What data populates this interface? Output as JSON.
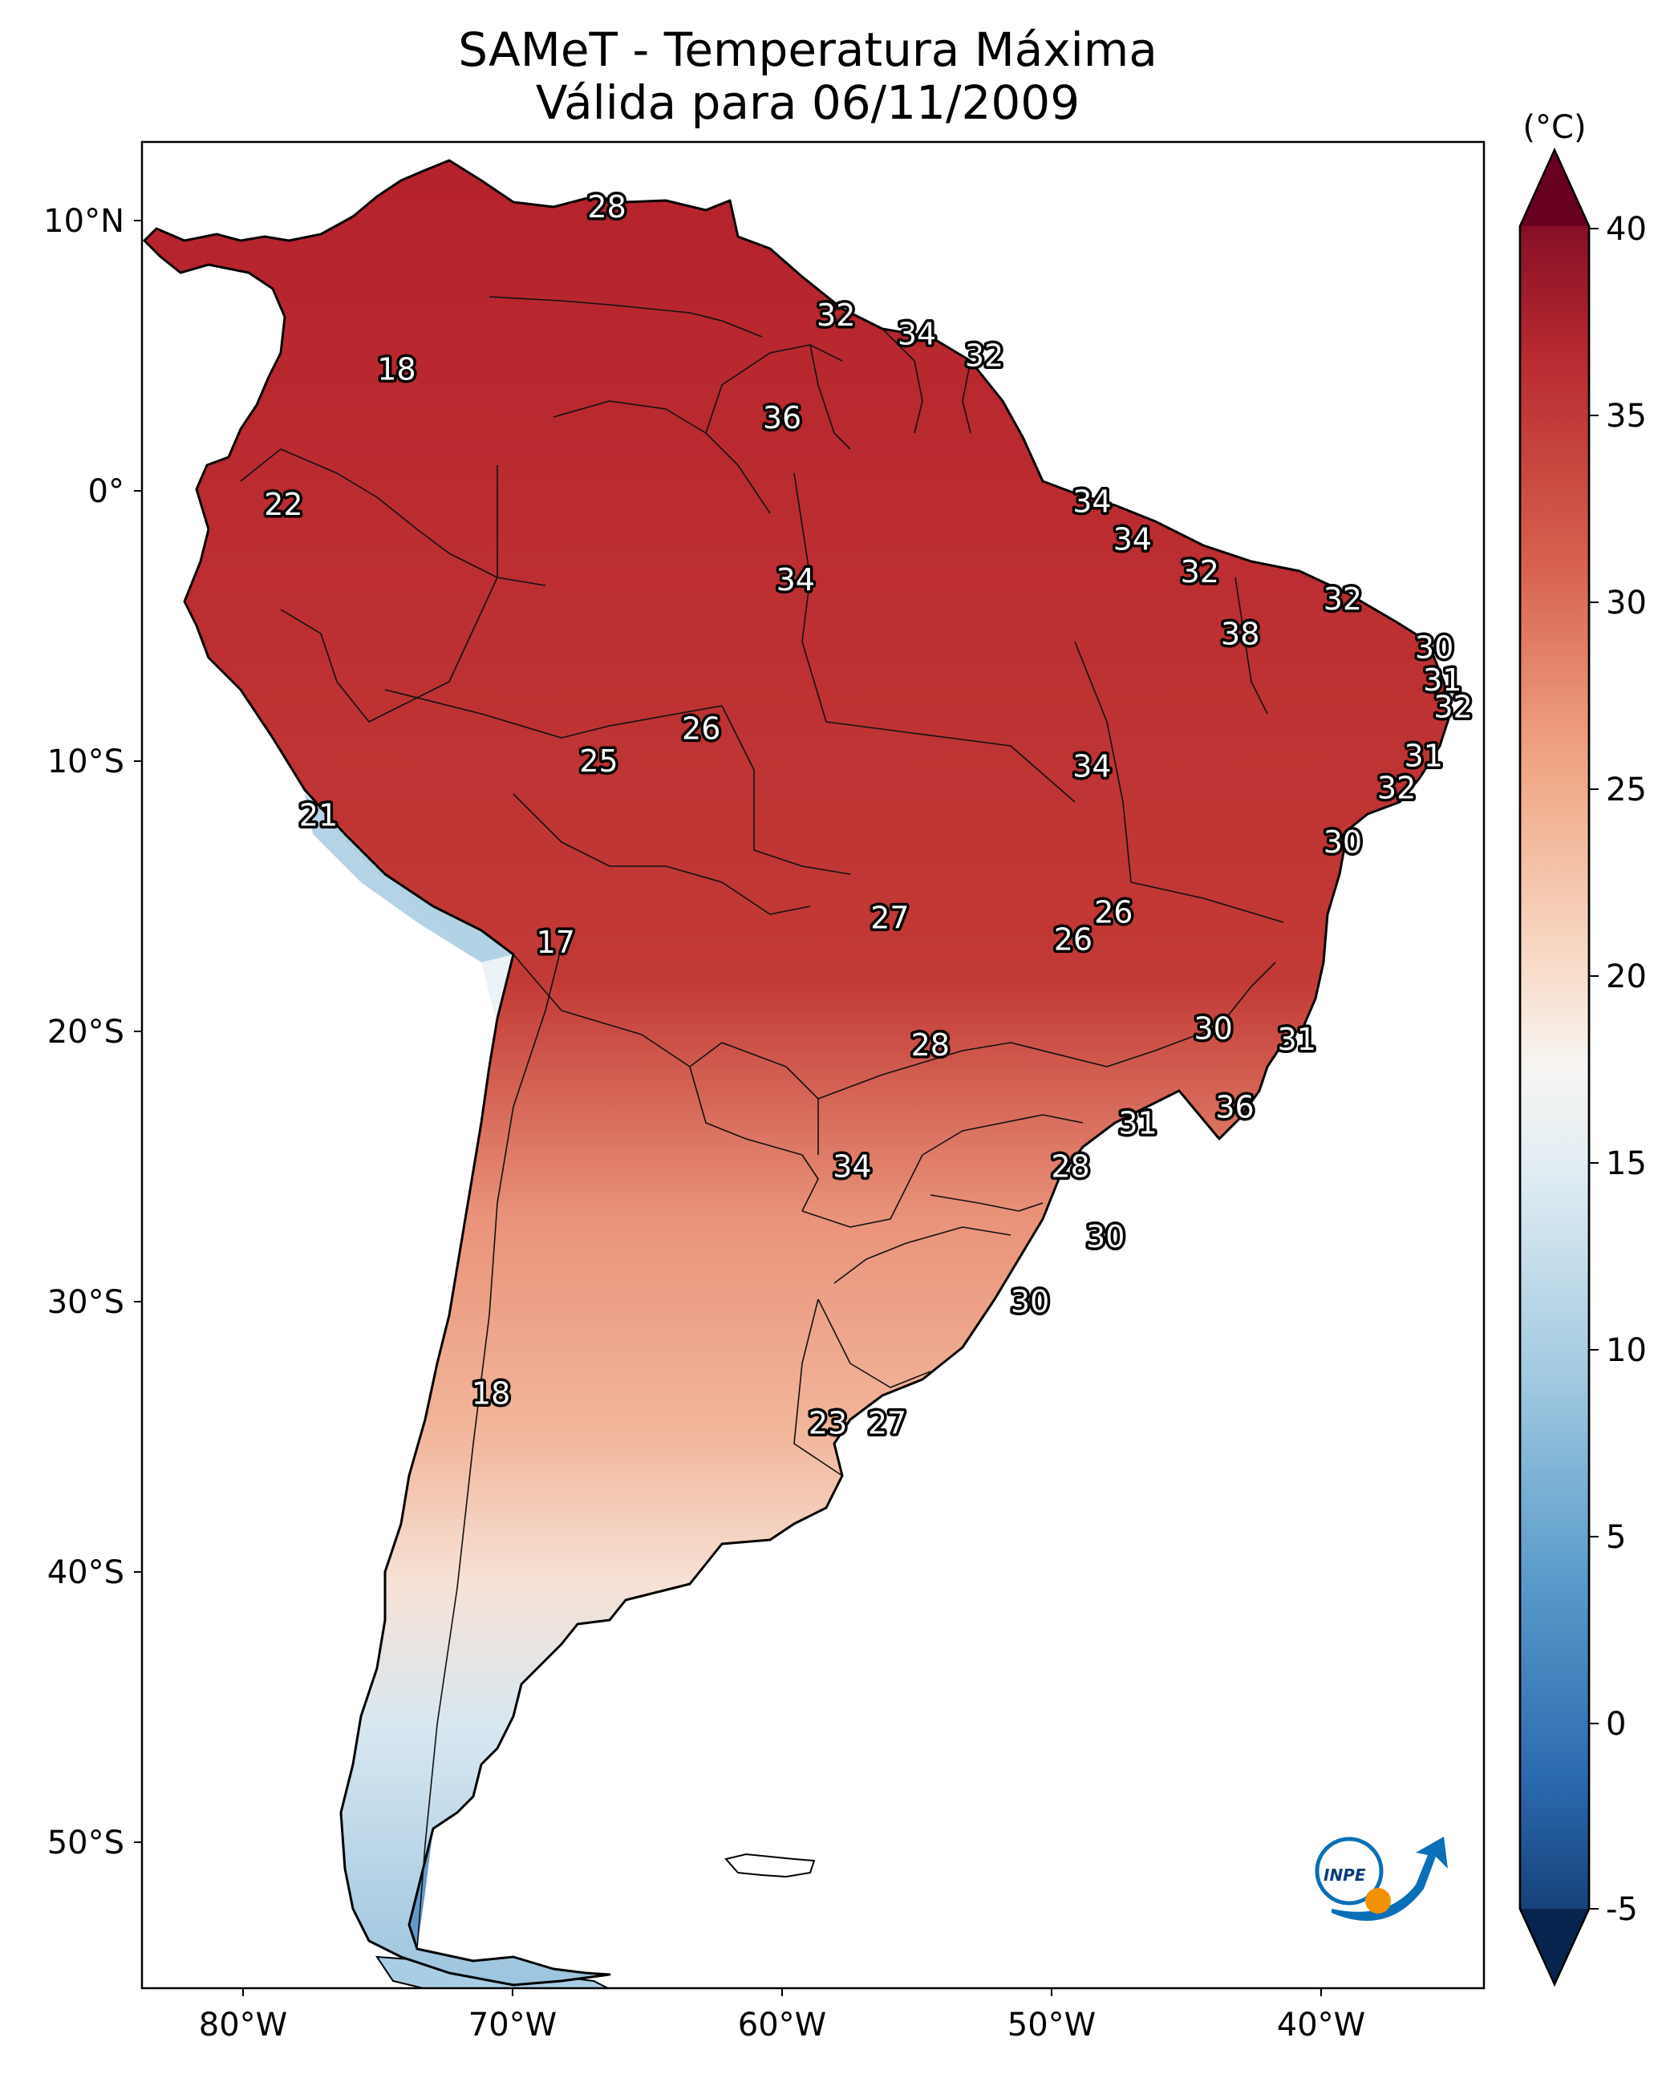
{
  "map": {
    "title_line1": "SAMeT - Temperatura Máxima",
    "title_line2": "Válida para 06/11/2009",
    "lon_ticks": [
      "80°W",
      "70°W",
      "60°W",
      "50°W",
      "40°W"
    ],
    "lat_ticks": [
      "10°N",
      "0°",
      "10°S",
      "20°S",
      "30°S",
      "40°S",
      "50°S"
    ],
    "colorbar": {
      "unit": "(°C)",
      "min": -5,
      "max": 40,
      "ticks": [
        "40",
        "35",
        "30",
        "25",
        "20",
        "15",
        "10",
        "5",
        "0",
        "-5"
      ],
      "colors": {
        "-5": "#0b2b5c",
        "0": "#2b6aaf",
        "5": "#5a9ccb",
        "10": "#a3cae1",
        "15": "#e1edf3",
        "17.5": "#f7f5f2",
        "20": "#f8dbc8",
        "25": "#f0a583",
        "30": "#d6604d",
        "35": "#b72930",
        "40": "#67001f"
      }
    },
    "logo_text": "INPE",
    "contour_labels": [
      {
        "text": "28",
        "lon": -66.5,
        "lat": 10.5
      },
      {
        "text": "32",
        "lon": -58.0,
        "lat": 6.5
      },
      {
        "text": "34",
        "lon": -55.0,
        "lat": 5.8
      },
      {
        "text": "32",
        "lon": -52.5,
        "lat": 5.0
      },
      {
        "text": "18",
        "lon": -74.3,
        "lat": 4.5
      },
      {
        "text": "36",
        "lon": -60.0,
        "lat": 2.7
      },
      {
        "text": "22",
        "lon": -78.5,
        "lat": -0.5
      },
      {
        "text": "34",
        "lon": -48.5,
        "lat": -0.4
      },
      {
        "text": "34",
        "lon": -47.0,
        "lat": -1.8
      },
      {
        "text": "32",
        "lon": -44.5,
        "lat": -3.0
      },
      {
        "text": "34",
        "lon": -59.5,
        "lat": -3.3
      },
      {
        "text": "32",
        "lon": -39.2,
        "lat": -4.0
      },
      {
        "text": "38",
        "lon": -43.0,
        "lat": -5.3
      },
      {
        "text": "30",
        "lon": -35.8,
        "lat": -5.8
      },
      {
        "text": "31",
        "lon": -35.5,
        "lat": -7.0
      },
      {
        "text": "32",
        "lon": -35.1,
        "lat": -8.0
      },
      {
        "text": "26",
        "lon": -63.0,
        "lat": -8.8
      },
      {
        "text": "31",
        "lon": -36.2,
        "lat": -9.8
      },
      {
        "text": "25",
        "lon": -66.8,
        "lat": -10.0
      },
      {
        "text": "34",
        "lon": -48.5,
        "lat": -10.2
      },
      {
        "text": "32",
        "lon": -37.2,
        "lat": -11.0
      },
      {
        "text": "21",
        "lon": -77.2,
        "lat": -12.0
      },
      {
        "text": "30",
        "lon": -39.2,
        "lat": -13.0
      },
      {
        "text": "26",
        "lon": -47.7,
        "lat": -15.6
      },
      {
        "text": "27",
        "lon": -56.0,
        "lat": -15.8
      },
      {
        "text": "26",
        "lon": -49.2,
        "lat": -16.6
      },
      {
        "text": "17",
        "lon": -68.4,
        "lat": -16.7
      },
      {
        "text": "30",
        "lon": -44.0,
        "lat": -19.9
      },
      {
        "text": "31",
        "lon": -40.9,
        "lat": -20.3
      },
      {
        "text": "28",
        "lon": -54.5,
        "lat": -20.5
      },
      {
        "text": "36",
        "lon": -43.2,
        "lat": -22.8
      },
      {
        "text": "31",
        "lon": -46.8,
        "lat": -23.4
      },
      {
        "text": "34",
        "lon": -57.4,
        "lat": -25.0
      },
      {
        "text": "28",
        "lon": -49.3,
        "lat": -25.0
      },
      {
        "text": "30",
        "lon": -48.0,
        "lat": -27.6
      },
      {
        "text": "30",
        "lon": -50.8,
        "lat": -30.0
      },
      {
        "text": "18",
        "lon": -70.8,
        "lat": -33.4
      },
      {
        "text": "23",
        "lon": -58.3,
        "lat": -34.5
      },
      {
        "text": "27",
        "lon": -56.1,
        "lat": -34.5
      }
    ]
  }
}
